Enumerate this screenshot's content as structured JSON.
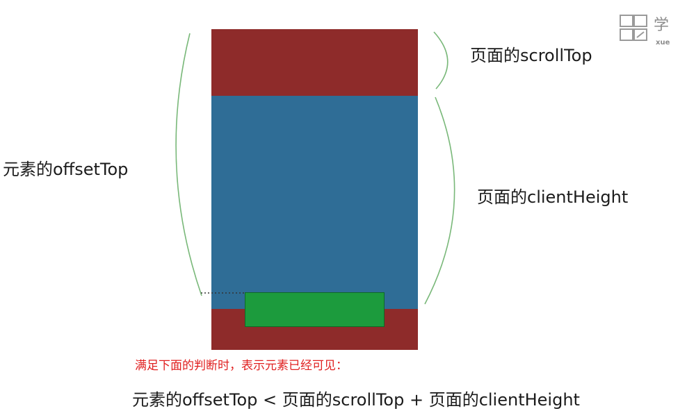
{
  "labels": {
    "scroll_top": "页面的scrollTop",
    "client_height": "页面的clientHeight",
    "offset_top": "元素的offsetTop"
  },
  "note": "满足下面的判断时，表示元素已经可见：",
  "formula": "元素的offsetTop < 页面的scrollTop + 页面的clientHeight",
  "watermark": {
    "text_main": "学",
    "text_sub": "xue"
  },
  "colors": {
    "page_red": "#8e2b2a",
    "viewport_blue": "#2f6d96",
    "element_green": "#1c9b3d",
    "brace_green": "#79b879",
    "note_red": "#e02020"
  }
}
